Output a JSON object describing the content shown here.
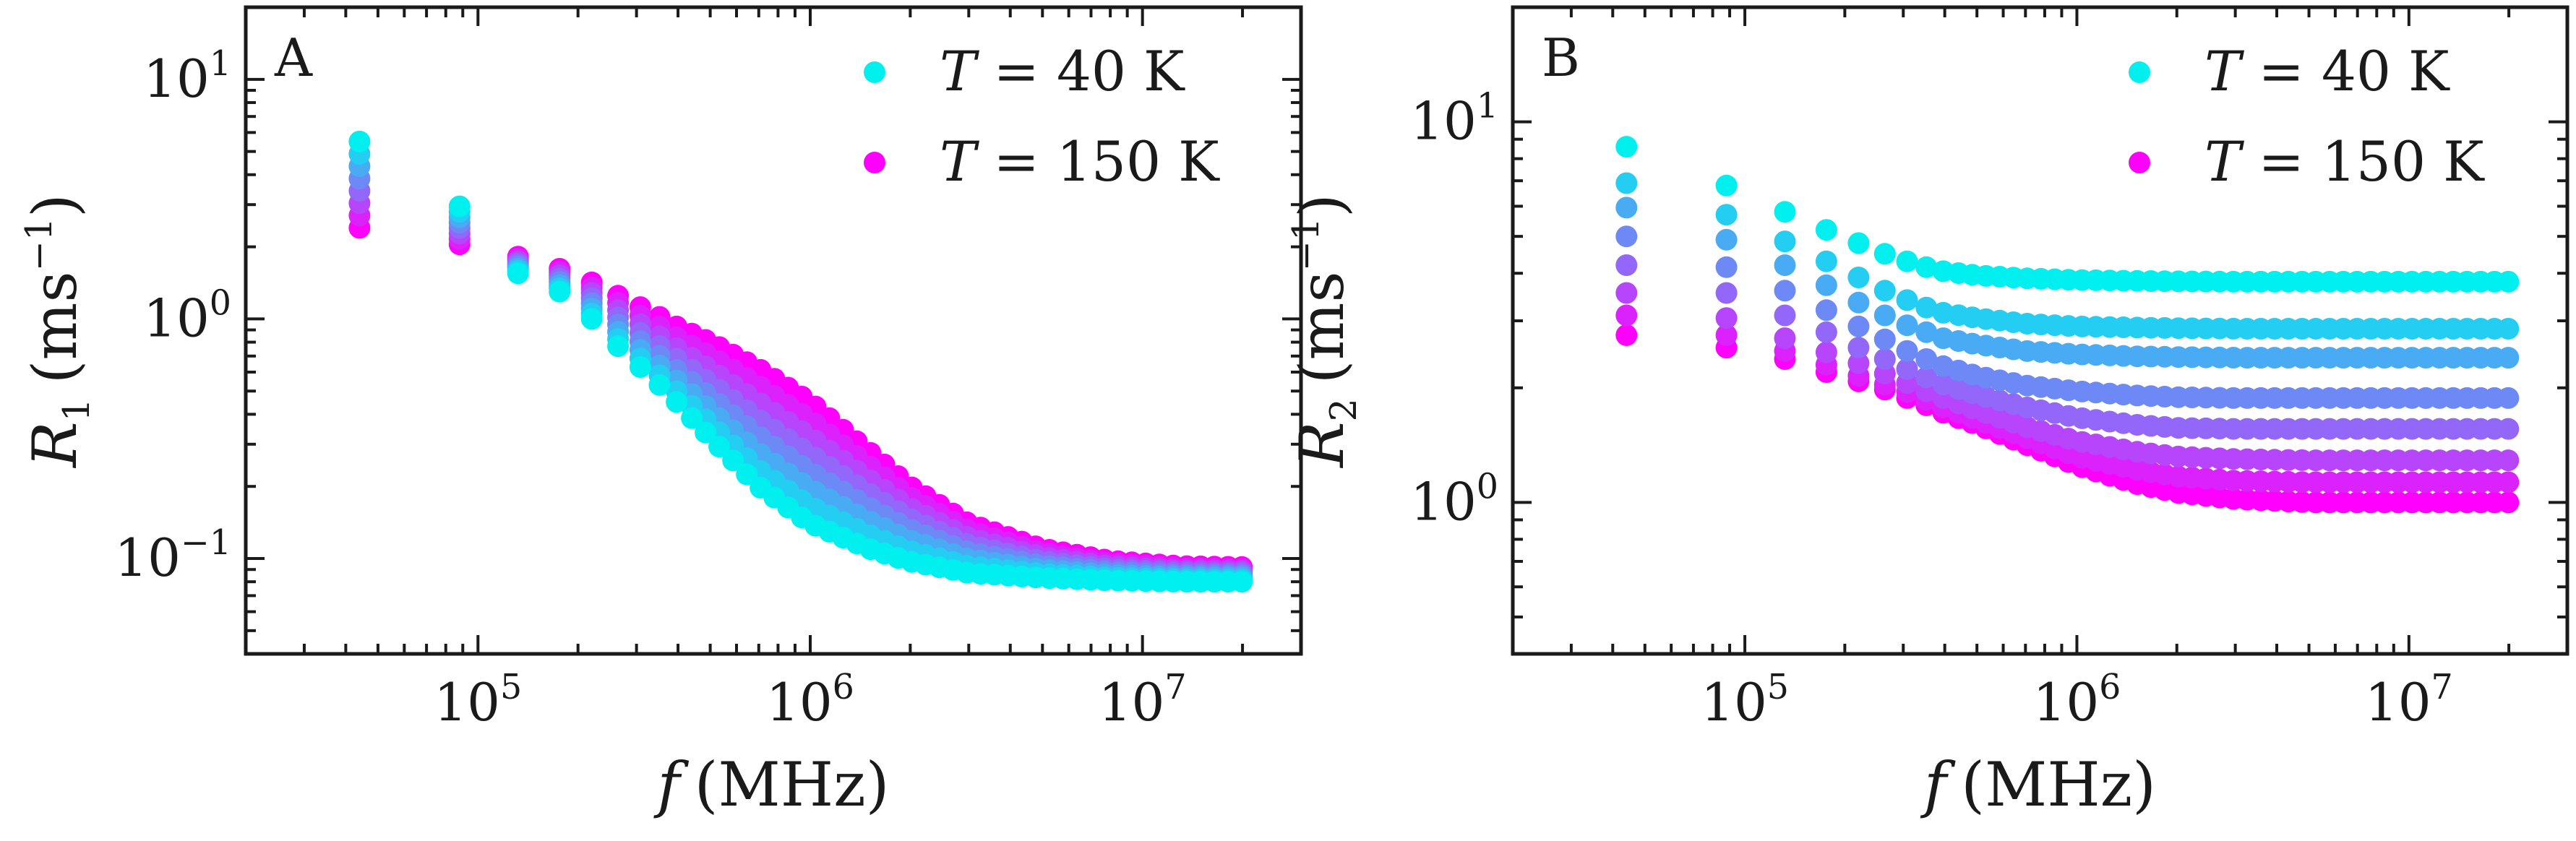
{
  "colors": {
    "cold": "#00f0f0",
    "hot": "#ff00ff",
    "axes": "#1a1a1a"
  },
  "chart_data": [
    {
      "type": "scatter",
      "panel": "A",
      "xlabel_var": "f",
      "xlabel_unit": "(MHz)",
      "ylabel_var": "R",
      "ylabel_sub": "1",
      "ylabel_unit": "(ms",
      "ylabel_unit_exp": "−1",
      "ylabel_unit_close": ")",
      "xscale": "log",
      "yscale": "log",
      "xlim": [
        20000,
        30000000
      ],
      "ylim": [
        0.04,
        20
      ],
      "x_ticks": [
        {
          "base": "10",
          "exp": "5",
          "value": 100000
        },
        {
          "base": "10",
          "exp": "6",
          "value": 1000000
        },
        {
          "base": "10",
          "exp": "7",
          "value": 10000000
        }
      ],
      "y_ticks": [
        {
          "base": "10",
          "exp": "1",
          "value": 10
        },
        {
          "base": "10",
          "exp": "0",
          "value": 1
        },
        {
          "base": "10",
          "exp": "−1",
          "value": 0.1
        }
      ],
      "legend_position": "top-right",
      "legend": [
        {
          "var": "T",
          "rest": " = 40 K",
          "color": "#00f0f0"
        },
        {
          "var": "T",
          "rest": " = 150 K",
          "color": "#ff00ff"
        }
      ],
      "grid": false,
      "temperatures_K": [
        40,
        55.7,
        71.4,
        87.1,
        102.9,
        118.6,
        134.3,
        150
      ],
      "sampled_f": [
        44000,
        88000,
        132000,
        176000,
        220000,
        264000,
        308000,
        352000,
        396000,
        500000,
        700000,
        1000000,
        1500000,
        2000000,
        3000000,
        5000000,
        8000000,
        13000000,
        21500000
      ],
      "series": [
        {
          "T": 40,
          "values": [
            5.5,
            2.95,
            1.55,
            1.3,
            1.0,
            0.77,
            0.63,
            0.53,
            0.45,
            0.32,
            0.2,
            0.14,
            0.11,
            0.097,
            0.087,
            0.083,
            0.081,
            0.08,
            0.08
          ]
        },
        {
          "T": 150,
          "values": [
            2.4,
            2.05,
            1.82,
            1.62,
            1.42,
            1.25,
            1.12,
            1.02,
            0.93,
            0.8,
            0.62,
            0.45,
            0.28,
            0.2,
            0.14,
            0.11,
            0.098,
            0.093,
            0.092
          ]
        }
      ]
    },
    {
      "type": "scatter",
      "panel": "B",
      "xlabel_var": "f",
      "xlabel_unit": "(MHz)",
      "ylabel_var": "R",
      "ylabel_sub": "2",
      "ylabel_unit": "(ms",
      "ylabel_unit_exp": "−1",
      "ylabel_unit_close": ")",
      "xscale": "log",
      "yscale": "log",
      "xlim": [
        20000,
        30000000
      ],
      "ylim": [
        0.4,
        20
      ],
      "x_ticks": [
        {
          "base": "10",
          "exp": "5",
          "value": 100000
        },
        {
          "base": "10",
          "exp": "6",
          "value": 1000000
        },
        {
          "base": "10",
          "exp": "7",
          "value": 10000000
        }
      ],
      "y_ticks": [
        {
          "base": "10",
          "exp": "1",
          "value": 10
        },
        {
          "base": "10",
          "exp": "0",
          "value": 1
        }
      ],
      "legend_position": "top-right",
      "legend": [
        {
          "var": "T",
          "rest": " = 40 K",
          "color": "#00f0f0"
        },
        {
          "var": "T",
          "rest": " = 150 K",
          "color": "#ff00ff"
        }
      ],
      "grid": false,
      "temperatures_K": [
        40,
        55.7,
        71.4,
        87.1,
        102.9,
        118.6,
        134.3,
        150
      ],
      "sampled_f": [
        44000,
        88000,
        132000,
        176000,
        220000,
        264000,
        308000,
        352000,
        396000,
        500000,
        700000,
        1000000,
        1500000,
        2000000,
        3000000,
        5000000,
        8000000,
        13000000,
        21500000
      ],
      "series": [
        {
          "T": 40,
          "values": [
            8.6,
            6.8,
            5.8,
            5.2,
            4.8,
            4.5,
            4.3,
            4.15,
            4.05,
            3.95,
            3.88,
            3.84,
            3.82,
            3.81,
            3.8,
            3.8,
            3.8,
            3.8,
            3.8
          ]
        },
        {
          "T": 55.7,
          "values": [
            6.9,
            5.7,
            4.85,
            4.3,
            3.9,
            3.6,
            3.4,
            3.25,
            3.15,
            3.05,
            2.95,
            2.9,
            2.88,
            2.87,
            2.86,
            2.86,
            2.86,
            2.86,
            2.86
          ]
        },
        {
          "T": 71.4,
          "values": [
            5.95,
            4.9,
            4.2,
            3.72,
            3.35,
            3.1,
            2.92,
            2.8,
            2.7,
            2.6,
            2.5,
            2.45,
            2.42,
            2.41,
            2.4,
            2.4,
            2.4,
            2.4,
            2.4
          ]
        },
        {
          "T": 87.1,
          "values": [
            5.0,
            4.15,
            3.6,
            3.2,
            2.9,
            2.68,
            2.5,
            2.38,
            2.28,
            2.15,
            2.03,
            1.96,
            1.91,
            1.89,
            1.88,
            1.88,
            1.88,
            1.88,
            1.88
          ]
        },
        {
          "T": 102.9,
          "values": [
            4.2,
            3.55,
            3.1,
            2.8,
            2.55,
            2.38,
            2.24,
            2.13,
            2.04,
            1.92,
            1.78,
            1.67,
            1.6,
            1.57,
            1.56,
            1.56,
            1.56,
            1.56,
            1.56
          ]
        },
        {
          "T": 118.6,
          "values": [
            3.55,
            3.05,
            2.7,
            2.48,
            2.32,
            2.18,
            2.06,
            1.96,
            1.88,
            1.75,
            1.58,
            1.45,
            1.36,
            1.32,
            1.3,
            1.29,
            1.29,
            1.29,
            1.29
          ]
        },
        {
          "T": 134.3,
          "values": [
            3.1,
            2.75,
            2.5,
            2.3,
            2.15,
            2.04,
            1.95,
            1.86,
            1.78,
            1.65,
            1.48,
            1.32,
            1.22,
            1.17,
            1.14,
            1.13,
            1.13,
            1.13,
            1.13
          ]
        },
        {
          "T": 150,
          "values": [
            2.75,
            2.55,
            2.38,
            2.2,
            2.08,
            1.98,
            1.88,
            1.8,
            1.72,
            1.6,
            1.42,
            1.25,
            1.12,
            1.06,
            1.02,
            1.0,
            1.0,
            1.0,
            1.0
          ]
        }
      ]
    }
  ]
}
